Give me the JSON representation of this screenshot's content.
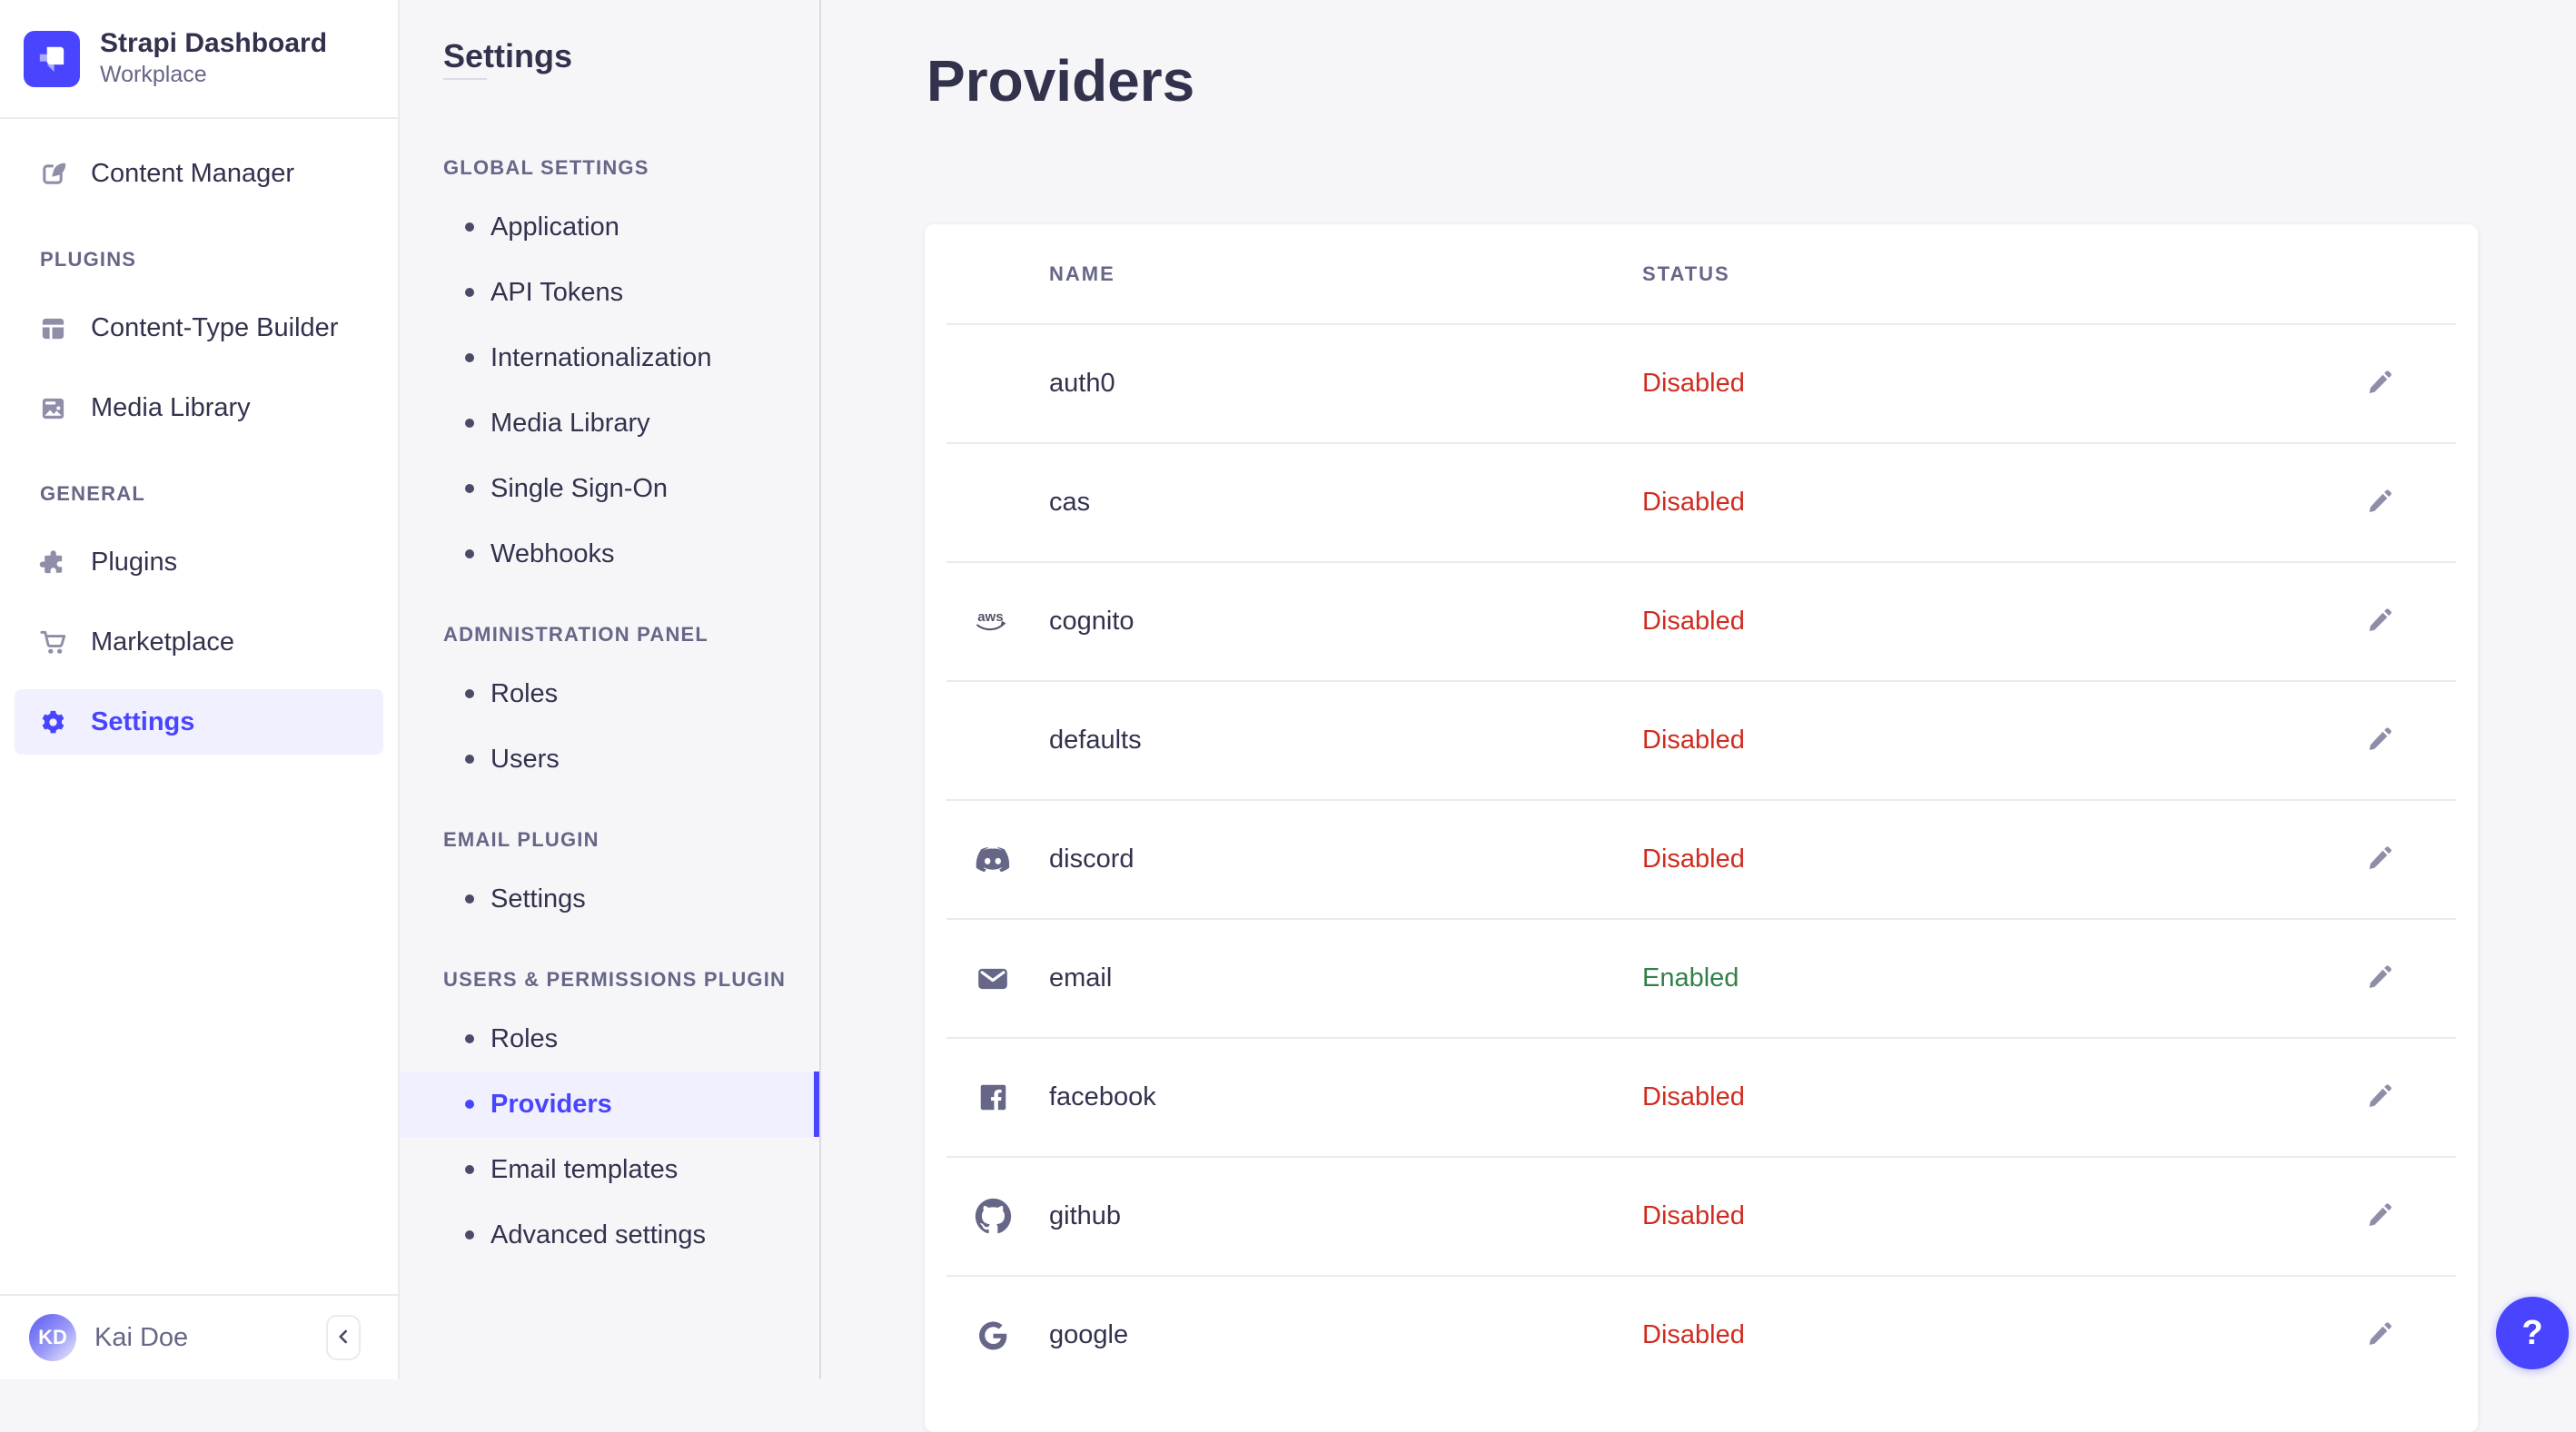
{
  "app": {
    "name": "Strapi Dashboard",
    "workspace": "Workplace",
    "logo_icon": "strapi-logo",
    "accent_color": "#4945ff"
  },
  "sidebar": {
    "sections": [
      {
        "label": "",
        "items": [
          {
            "label": "Content Manager",
            "icon": "content-manager-icon",
            "active": false
          }
        ]
      },
      {
        "label": "PLUGINS",
        "items": [
          {
            "label": "Content-Type Builder",
            "icon": "content-type-builder-icon",
            "active": false
          },
          {
            "label": "Media Library",
            "icon": "media-library-icon",
            "active": false
          }
        ]
      },
      {
        "label": "GENERAL",
        "items": [
          {
            "label": "Plugins",
            "icon": "plugins-icon",
            "active": false
          },
          {
            "label": "Marketplace",
            "icon": "marketplace-icon",
            "active": false
          },
          {
            "label": "Settings",
            "icon": "gear-icon",
            "active": true
          }
        ]
      }
    ],
    "user": {
      "name": "Kai Doe",
      "initials": "KD"
    },
    "collapse_icon": "chevron-left-icon"
  },
  "subnav": {
    "title": "Settings",
    "sections": [
      {
        "label": "GLOBAL SETTINGS",
        "items": [
          {
            "label": "Application",
            "active": false
          },
          {
            "label": "API Tokens",
            "active": false
          },
          {
            "label": "Internationalization",
            "active": false
          },
          {
            "label": "Media Library",
            "active": false
          },
          {
            "label": "Single Sign-On",
            "active": false
          },
          {
            "label": "Webhooks",
            "active": false
          }
        ]
      },
      {
        "label": "ADMINISTRATION PANEL",
        "items": [
          {
            "label": "Roles",
            "active": false
          },
          {
            "label": "Users",
            "active": false
          }
        ]
      },
      {
        "label": "EMAIL PLUGIN",
        "items": [
          {
            "label": "Settings",
            "active": false
          }
        ]
      },
      {
        "label": "USERS & PERMISSIONS PLUGIN",
        "items": [
          {
            "label": "Roles",
            "active": false
          },
          {
            "label": "Providers",
            "active": true
          },
          {
            "label": "Email templates",
            "active": false
          },
          {
            "label": "Advanced settings",
            "active": false
          }
        ]
      }
    ]
  },
  "main": {
    "title": "Providers",
    "table": {
      "columns": [
        "NAME",
        "STATUS"
      ],
      "rows": [
        {
          "name": "auth0",
          "icon": "",
          "status": "Disabled"
        },
        {
          "name": "cas",
          "icon": "",
          "status": "Disabled"
        },
        {
          "name": "cognito",
          "icon": "aws-icon",
          "status": "Disabled"
        },
        {
          "name": "defaults",
          "icon": "",
          "status": "Disabled"
        },
        {
          "name": "discord",
          "icon": "discord-icon",
          "status": "Disabled"
        },
        {
          "name": "email",
          "icon": "email-icon",
          "status": "Enabled"
        },
        {
          "name": "facebook",
          "icon": "facebook-icon",
          "status": "Disabled"
        },
        {
          "name": "github",
          "icon": "github-icon",
          "status": "Disabled"
        },
        {
          "name": "google",
          "icon": "google-icon",
          "status": "Disabled"
        }
      ],
      "edit_icon": "pencil-icon"
    },
    "status_colors": {
      "Enabled": "#328048",
      "Disabled": "#d02b20"
    }
  },
  "help": {
    "label": "?"
  }
}
